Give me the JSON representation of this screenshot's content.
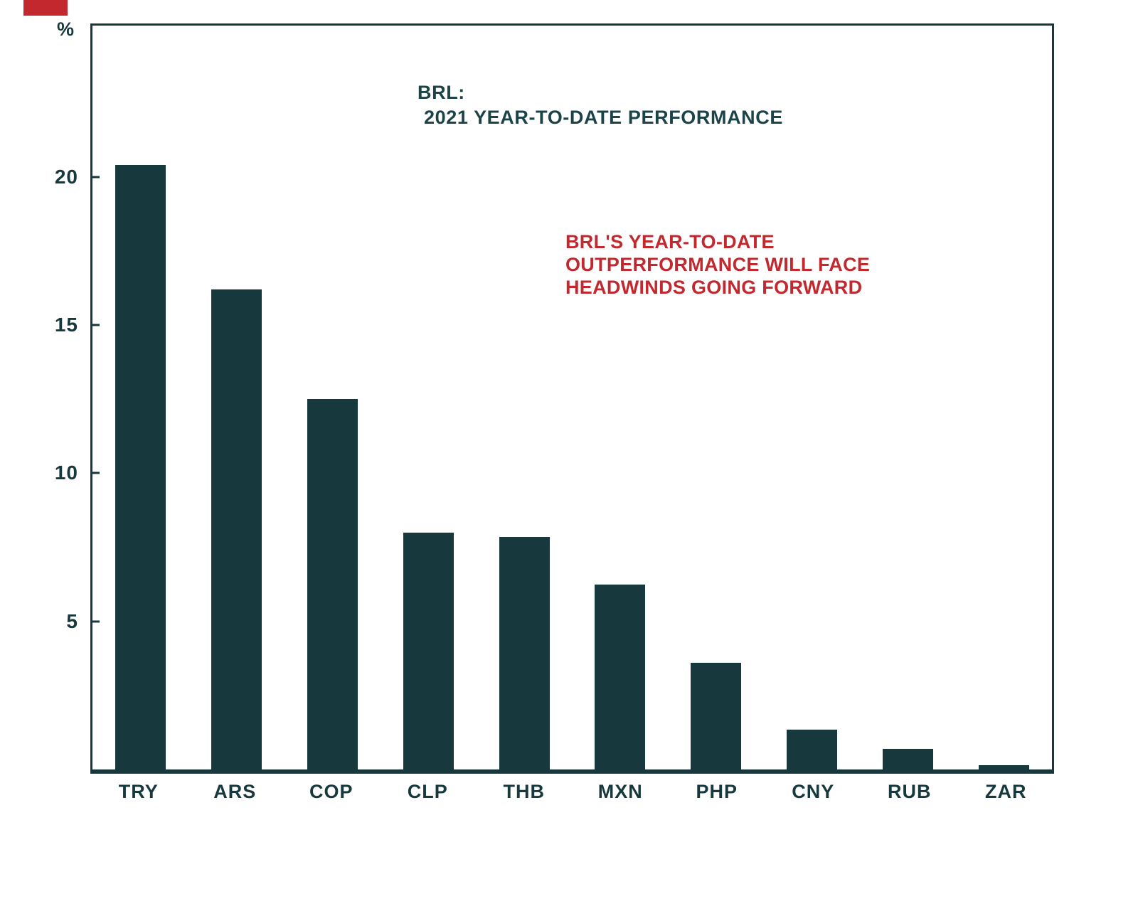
{
  "page": {
    "background": "#ffffff"
  },
  "decor": {
    "top_left_red_mark_color": "#C2282E"
  },
  "chart": {
    "unit_label": "%",
    "title_line1": "BRL:",
    "title_line2": "2021 YEAR-TO-DATE PERFORMANCE",
    "annotation_lines": [
      "BRL'S YEAR-TO-DATE",
      "OUTPERFORMANCE WILL FACE",
      "HEADWINDS GOING FORWARD"
    ],
    "annotation_color": "#C2282E",
    "bar_color": "#17393E",
    "axis_color": "#17393E",
    "y_ticks": [
      5,
      10,
      15,
      20
    ],
    "y_max": 25.1
  },
  "chart_data": {
    "type": "bar",
    "categories": [
      "TRY",
      "ARS",
      "COP",
      "CLP",
      "THB",
      "MXN",
      "PHP",
      "CNY",
      "RUB",
      "ZAR"
    ],
    "values": [
      20.4,
      16.2,
      12.5,
      8.0,
      7.85,
      6.25,
      3.6,
      1.35,
      0.7,
      0.15
    ],
    "title": "BRL: 2021 YEAR-TO-DATE PERFORMANCE",
    "xlabel": "",
    "ylabel": "%",
    "ylim": [
      0,
      25
    ],
    "grid": false,
    "legend": "none",
    "annotation": "BRL'S YEAR-TO-DATE OUTPERFORMANCE WILL FACE HEADWINDS GOING FORWARD"
  }
}
